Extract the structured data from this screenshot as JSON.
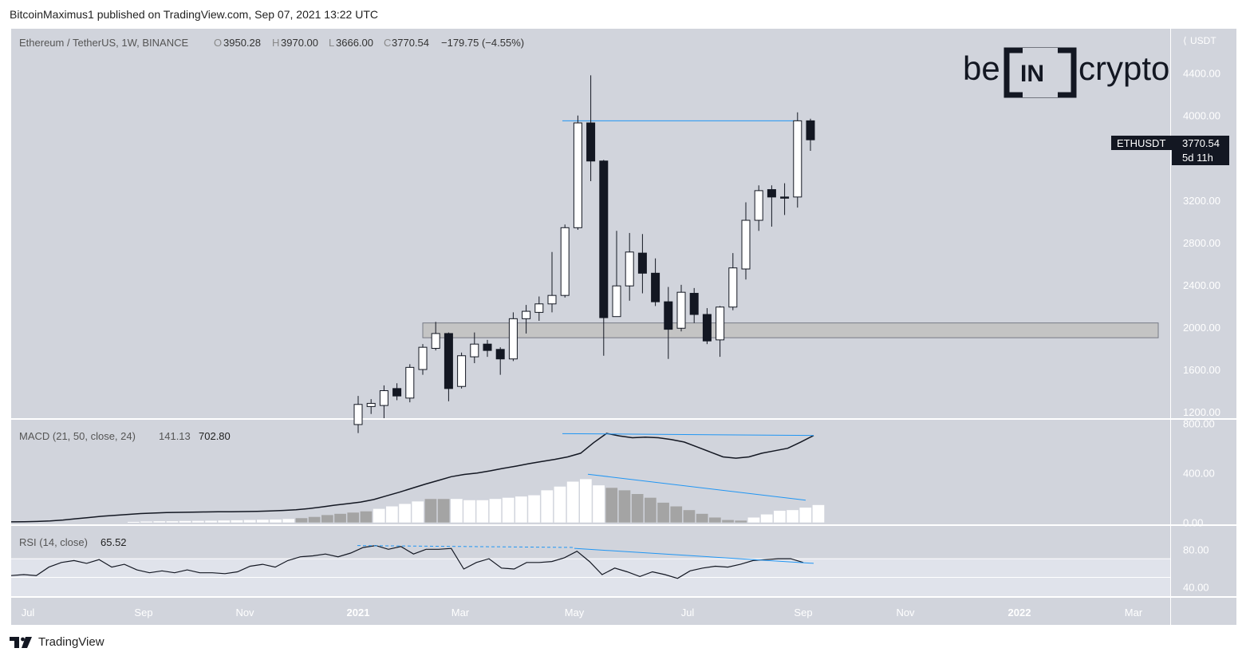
{
  "publisher": "BitcoinMaximus1 published on TradingView.com, Sep 07, 2021 13:22 UTC",
  "footer_brand": "TradingView",
  "watermark": {
    "left": "be",
    "mid": "IN",
    "right": "crypto"
  },
  "header": {
    "symbol": "Ethereum / TetherUS, 1W, BINANCE",
    "o_label": "O",
    "o_value": "3950.28",
    "h_label": "H",
    "h_value": "3970.00",
    "l_label": "L",
    "l_value": "3666.00",
    "c_label": "C",
    "c_value": "3770.54",
    "change": "−179.75 (−4.55%)"
  },
  "price_tag": {
    "symbol": "ETHUSDT",
    "price": "3770.54",
    "countdown": "5d 11h"
  },
  "colors": {
    "background": "#d1d4dc",
    "up_fill": "#ffffff",
    "down_fill": "#131722",
    "trendline": "#2196f3",
    "hist_bright": "#ffffff",
    "hist_gray": "#a4a4a4",
    "zone_fill": "#c4c4c4"
  },
  "chart_data": [
    {
      "type": "candlestick",
      "title": "Ethereum / TetherUS, 1W, BINANCE",
      "unit": "USDT",
      "y_ticks": [
        "4400.00",
        "4000.00",
        "3200.00",
        "2800.00",
        "2400.00",
        "2000.00",
        "1600.00",
        "1200.00"
      ],
      "ylim": [
        1140,
        4820
      ],
      "candles": [
        {
          "o": 1080,
          "h": 1350,
          "l": 1000,
          "c": 1270
        },
        {
          "o": 1250,
          "h": 1320,
          "l": 1180,
          "c": 1280
        },
        {
          "o": 1260,
          "h": 1450,
          "l": 1140,
          "c": 1400
        },
        {
          "o": 1420,
          "h": 1470,
          "l": 1310,
          "c": 1350
        },
        {
          "o": 1330,
          "h": 1650,
          "l": 1290,
          "c": 1620
        },
        {
          "o": 1600,
          "h": 1840,
          "l": 1550,
          "c": 1810
        },
        {
          "o": 1800,
          "h": 2050,
          "l": 1780,
          "c": 1940
        },
        {
          "o": 1940,
          "h": 1950,
          "l": 1300,
          "c": 1420
        },
        {
          "o": 1440,
          "h": 1760,
          "l": 1420,
          "c": 1730
        },
        {
          "o": 1720,
          "h": 1950,
          "l": 1660,
          "c": 1840
        },
        {
          "o": 1840,
          "h": 1880,
          "l": 1720,
          "c": 1780
        },
        {
          "o": 1790,
          "h": 1810,
          "l": 1550,
          "c": 1700
        },
        {
          "o": 1700,
          "h": 2140,
          "l": 1680,
          "c": 2080
        },
        {
          "o": 2080,
          "h": 2210,
          "l": 1940,
          "c": 2150
        },
        {
          "o": 2140,
          "h": 2290,
          "l": 2060,
          "c": 2220
        },
        {
          "o": 2220,
          "h": 2710,
          "l": 2140,
          "c": 2300
        },
        {
          "o": 2300,
          "h": 2970,
          "l": 2280,
          "c": 2940
        },
        {
          "o": 2940,
          "h": 4000,
          "l": 2920,
          "c": 3930
        },
        {
          "o": 3930,
          "h": 4380,
          "l": 3380,
          "c": 3570
        },
        {
          "o": 3570,
          "h": 3580,
          "l": 1730,
          "c": 2090
        },
        {
          "o": 2100,
          "h": 2910,
          "l": 2100,
          "c": 2390
        },
        {
          "o": 2390,
          "h": 2890,
          "l": 2250,
          "c": 2710
        },
        {
          "o": 2700,
          "h": 2880,
          "l": 2320,
          "c": 2510
        },
        {
          "o": 2510,
          "h": 2650,
          "l": 2200,
          "c": 2240
        },
        {
          "o": 2240,
          "h": 2380,
          "l": 1700,
          "c": 1980
        },
        {
          "o": 1990,
          "h": 2400,
          "l": 1960,
          "c": 2330
        },
        {
          "o": 2320,
          "h": 2370,
          "l": 2040,
          "c": 2120
        },
        {
          "o": 2120,
          "h": 2180,
          "l": 1840,
          "c": 1870
        },
        {
          "o": 1880,
          "h": 2200,
          "l": 1720,
          "c": 2190
        },
        {
          "o": 2190,
          "h": 2700,
          "l": 2160,
          "c": 2560
        },
        {
          "o": 2550,
          "h": 3180,
          "l": 2450,
          "c": 3010
        },
        {
          "o": 3010,
          "h": 3340,
          "l": 2910,
          "c": 3290
        },
        {
          "o": 3300,
          "h": 3340,
          "l": 2950,
          "c": 3230
        },
        {
          "o": 3230,
          "h": 3360,
          "l": 3060,
          "c": 3220
        },
        {
          "o": 3230,
          "h": 4030,
          "l": 3130,
          "c": 3950
        },
        {
          "o": 3950,
          "h": 3970,
          "l": 3666,
          "c": 3770.54
        }
      ],
      "resistance_line": 3950,
      "support_zone": [
        1900,
        2040
      ]
    },
    {
      "type": "line",
      "title": "MACD (21, 50, close, 24)",
      "values_printed": [
        "141.13",
        "702.80"
      ],
      "y_ticks": [
        "800.00",
        "400.00",
        "0.00"
      ],
      "ylim": [
        -15,
        830
      ],
      "macd_line": [
        5,
        6,
        8,
        12,
        20,
        30,
        40,
        50,
        58,
        65,
        72,
        76,
        80,
        82,
        84,
        85,
        86,
        87,
        88,
        90,
        93,
        97,
        103,
        112,
        125,
        140,
        152,
        165,
        185,
        215,
        245,
        278,
        310,
        340,
        370,
        388,
        400,
        417,
        437,
        455,
        475,
        493,
        510,
        530,
        560,
        645,
        720,
        700,
        685,
        690,
        685,
        670,
        650,
        610,
        570,
        530,
        520,
        530,
        560,
        580,
        600,
        650,
        703
      ],
      "histogram": [
        5,
        8,
        10,
        10,
        12,
        13,
        14,
        16,
        18,
        20,
        22,
        24,
        28,
        35,
        45,
        60,
        70,
        80,
        90,
        110,
        130,
        150,
        170,
        190,
        190,
        190,
        180,
        180,
        190,
        200,
        210,
        220,
        260,
        290,
        330,
        350,
        300,
        280,
        260,
        230,
        200,
        160,
        130,
        100,
        70,
        40,
        20,
        15,
        40,
        65,
        95,
        100,
        120,
        141
      ],
      "histogram_gray": [
        13,
        14,
        15,
        16,
        17,
        18,
        23,
        24,
        37,
        38,
        39,
        40,
        41,
        42,
        43,
        44,
        45,
        46,
        47
      ],
      "trendline_macd": [
        718,
        703
      ],
      "trendline_hist": [
        390,
        180
      ]
    },
    {
      "type": "line",
      "title": "RSI (14, close)",
      "values_printed": [
        "65.52"
      ],
      "y_ticks": [
        "80.00",
        "40.00"
      ],
      "ylim": [
        30,
        105
      ],
      "band": [
        30,
        70
      ],
      "values": [
        52,
        53,
        52,
        61,
        66,
        68,
        65,
        69,
        61,
        64,
        58,
        55,
        57,
        55,
        58,
        55,
        55,
        54,
        56,
        62,
        64,
        61,
        68,
        72,
        73,
        75,
        72,
        76,
        82,
        84,
        80,
        83,
        75,
        80,
        80,
        81,
        59,
        66,
        70,
        60,
        59,
        66,
        66,
        67,
        71,
        78,
        67,
        53,
        60,
        56,
        51,
        56,
        53,
        49,
        57,
        60,
        62,
        61,
        64,
        68,
        69,
        70,
        70,
        66
      ],
      "trendline_dashed": [
        84,
        82
      ],
      "trendline_solid": [
        81,
        65
      ]
    }
  ],
  "x_axis_labels": [
    "Jul",
    "Sep",
    "Nov",
    "2021",
    "Mar",
    "May",
    "Jul",
    "Sep",
    "Nov",
    "2022",
    "Mar"
  ],
  "usdt_label": "USDT"
}
